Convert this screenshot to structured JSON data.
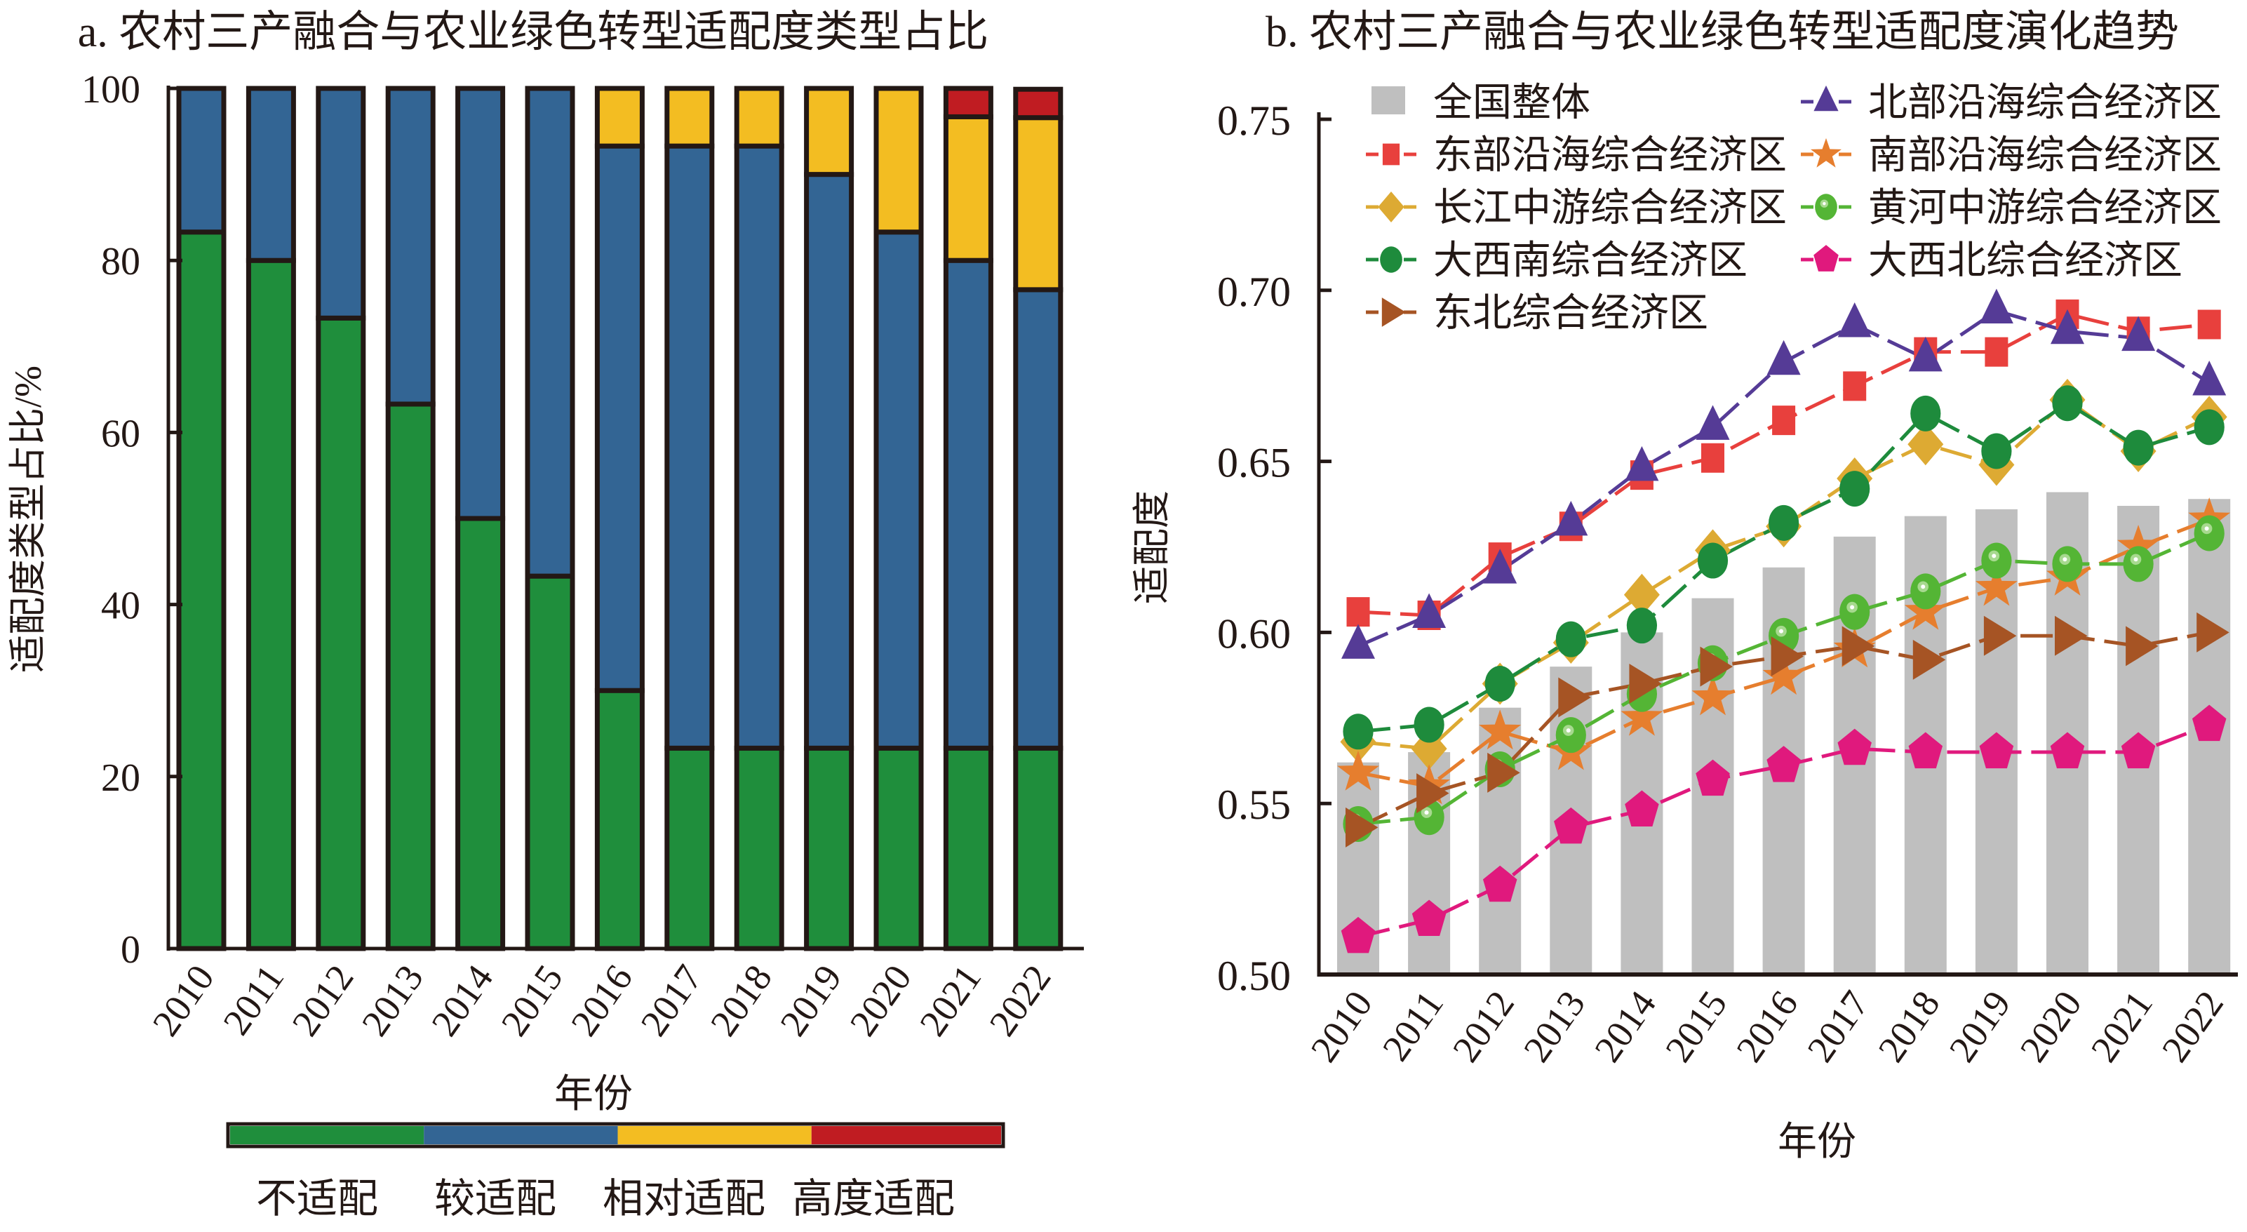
{
  "chart_data": [
    {
      "type": "bar",
      "stacked": true,
      "title": "a. 农村三产融合与农业绿色转型适配度类型占比",
      "xlabel": "年份",
      "ylabel": "适配度类型占比/%",
      "ylim": [
        0,
        100
      ],
      "yticks": [
        0,
        20,
        40,
        60,
        80,
        100
      ],
      "categories": [
        "2010",
        "2011",
        "2012",
        "2013",
        "2014",
        "2015",
        "2016",
        "2017",
        "2018",
        "2019",
        "2020",
        "2021",
        "2022"
      ],
      "series": [
        {
          "name": "不适配",
          "color": "#1f8e3c",
          "values": [
            83.3,
            80.0,
            73.3,
            63.3,
            50.0,
            43.3,
            30.0,
            23.3,
            23.3,
            23.3,
            23.3,
            23.3,
            23.3
          ]
        },
        {
          "name": "较适配",
          "color": "#336594",
          "values": [
            16.7,
            20.0,
            26.7,
            36.7,
            50.0,
            56.7,
            63.3,
            70.0,
            70.0,
            66.7,
            60.0,
            56.7,
            53.3
          ]
        },
        {
          "name": "相对适配",
          "color": "#f3bd22",
          "values": [
            0,
            0,
            0,
            0,
            0,
            0,
            6.7,
            6.7,
            6.7,
            10.0,
            16.7,
            16.7,
            20.0
          ]
        },
        {
          "name": "高度适配",
          "color": "#c01c22",
          "values": [
            0,
            0,
            0,
            0,
            0,
            0,
            0,
            0,
            0,
            0,
            0,
            3.3,
            3.3
          ]
        }
      ],
      "legend": {
        "placement": "bottom",
        "style": "color-bar"
      },
      "grid": false
    },
    {
      "type": "line",
      "title": "b. 农村三产融合与农业绿色转型适配度演化趋势",
      "xlabel": "年份",
      "ylabel": "适配度",
      "ylim": [
        0.5,
        0.75
      ],
      "yticks": [
        "0.50",
        "0.55",
        "0.60",
        "0.65",
        "0.70",
        "0.75"
      ],
      "x": [
        "2010",
        "2011",
        "2012",
        "2013",
        "2014",
        "2015",
        "2016",
        "2017",
        "2018",
        "2019",
        "2020",
        "2021",
        "2022"
      ],
      "bar_series": {
        "name": "全国整体",
        "color": "#bfbfbf",
        "values": [
          0.562,
          0.565,
          0.578,
          0.59,
          0.6,
          0.61,
          0.619,
          0.628,
          0.634,
          0.636,
          0.641,
          0.637,
          0.639
        ]
      },
      "series": [
        {
          "name": "东部沿海综合经济区",
          "marker": "square",
          "color": "#e8403d",
          "values": [
            0.606,
            0.605,
            0.622,
            0.631,
            0.646,
            0.651,
            0.662,
            0.672,
            0.682,
            0.682,
            0.693,
            0.688,
            0.69
          ]
        },
        {
          "name": "北部沿海综合经济区",
          "marker": "triangle-up",
          "color": "#553b96",
          "values": [
            0.596,
            0.605,
            0.618,
            0.632,
            0.648,
            0.66,
            0.679,
            0.69,
            0.68,
            0.694,
            0.688,
            0.686,
            0.673
          ]
        },
        {
          "name": "长江中游综合经济区",
          "marker": "diamond",
          "color": "#ddaa33",
          "values": [
            0.568,
            0.566,
            0.585,
            0.597,
            0.611,
            0.624,
            0.631,
            0.645,
            0.655,
            0.649,
            0.668,
            0.653,
            0.663
          ]
        },
        {
          "name": "南部沿海综合经济区",
          "marker": "star",
          "color": "#e67e2e",
          "values": [
            0.559,
            0.555,
            0.571,
            0.565,
            0.575,
            0.581,
            0.587,
            0.595,
            0.606,
            0.613,
            0.616,
            0.625,
            0.633
          ]
        },
        {
          "name": "黄河中游综合经济区",
          "marker": "sphere",
          "color": "#54b535",
          "values": [
            0.544,
            0.546,
            0.56,
            0.57,
            0.582,
            0.591,
            0.599,
            0.606,
            0.612,
            0.621,
            0.62,
            0.62,
            0.629
          ]
        },
        {
          "name": "大西南综合经济区",
          "marker": "circle",
          "color": "#1e8b3c",
          "values": [
            0.571,
            0.573,
            0.585,
            0.598,
            0.602,
            0.621,
            0.632,
            0.642,
            0.664,
            0.653,
            0.667,
            0.654,
            0.66
          ]
        },
        {
          "name": "大西北综合经济区",
          "marker": "pentagon",
          "color": "#e0197d",
          "values": [
            0.511,
            0.516,
            0.526,
            0.543,
            0.548,
            0.557,
            0.561,
            0.566,
            0.565,
            0.565,
            0.565,
            0.565,
            0.573
          ]
        },
        {
          "name": "东北综合经济区",
          "marker": "triangle-right",
          "color": "#a65424",
          "values": [
            0.543,
            0.553,
            0.559,
            0.581,
            0.585,
            0.59,
            0.593,
            0.596,
            0.592,
            0.599,
            0.599,
            0.596,
            0.6
          ]
        }
      ],
      "legend": {
        "placement": "top-left",
        "columns": 2,
        "order": [
          "全国整体",
          "北部沿海综合经济区",
          "东部沿海综合经济区",
          "南部沿海综合经济区",
          "长江中游综合经济区",
          "黄河中游综合经济区",
          "大西南综合经济区",
          "大西北综合经济区",
          "东北综合经济区"
        ]
      },
      "grid": false
    }
  ]
}
